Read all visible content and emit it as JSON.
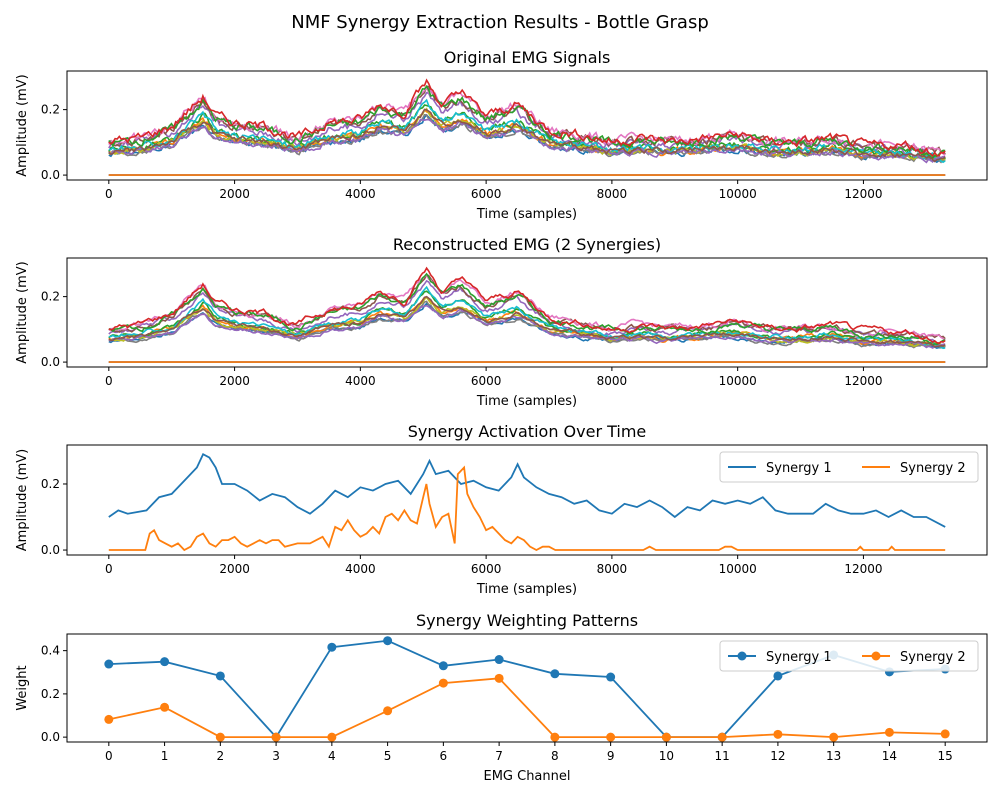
{
  "figure_title": "NMF Synergy Extraction Results - Bottle Grasp",
  "colors": {
    "synergy_1": "#1f77b4",
    "synergy_2": "#ff7f0e",
    "channel_palette": [
      "#1f77b4",
      "#ff7f0e",
      "#2ca02c",
      "#d62728",
      "#9467bd",
      "#8c564b",
      "#e377c2",
      "#7f7f7f",
      "#bcbd22",
      "#17becf"
    ]
  },
  "chart_data": [
    {
      "id": "original",
      "type": "line",
      "title": "Original EMG Signals",
      "xlabel": "Time (samples)",
      "ylabel": "Amplitude (mV)",
      "xlim": [
        0,
        13300
      ],
      "ylim": [
        0,
        0.3
      ],
      "xticks": [
        0,
        2000,
        4000,
        6000,
        8000,
        10000,
        12000
      ],
      "yticks": [
        0.0,
        0.2
      ],
      "ytick_labels": [
        "0.0",
        "0.2"
      ],
      "legend": false,
      "channels": 16,
      "note_channels_at_zero": [
        3,
        10,
        11
      ],
      "envelope": [
        [
          0,
          0.09
        ],
        [
          500,
          0.1
        ],
        [
          1000,
          0.13
        ],
        [
          1500,
          0.21
        ],
        [
          1700,
          0.16
        ],
        [
          2000,
          0.14
        ],
        [
          2500,
          0.13
        ],
        [
          3000,
          0.1
        ],
        [
          3500,
          0.14
        ],
        [
          4000,
          0.15
        ],
        [
          4300,
          0.19
        ],
        [
          4700,
          0.17
        ],
        [
          5050,
          0.25
        ],
        [
          5300,
          0.19
        ],
        [
          5600,
          0.22
        ],
        [
          6000,
          0.16
        ],
        [
          6500,
          0.19
        ],
        [
          7000,
          0.12
        ],
        [
          7500,
          0.11
        ],
        [
          8000,
          0.09
        ],
        [
          8500,
          0.1
        ],
        [
          9000,
          0.09
        ],
        [
          9500,
          0.1
        ],
        [
          10000,
          0.11
        ],
        [
          10500,
          0.09
        ],
        [
          11000,
          0.09
        ],
        [
          11500,
          0.1
        ],
        [
          12000,
          0.08
        ],
        [
          12500,
          0.08
        ],
        [
          13300,
          0.06
        ]
      ]
    },
    {
      "id": "reconstructed",
      "type": "line",
      "title": "Reconstructed EMG (2 Synergies)",
      "xlabel": "Time (samples)",
      "ylabel": "Amplitude (mV)",
      "xlim": [
        0,
        13300
      ],
      "ylim": [
        0,
        0.3
      ],
      "xticks": [
        0,
        2000,
        4000,
        6000,
        8000,
        10000,
        12000
      ],
      "yticks": [
        0.0,
        0.2
      ],
      "ytick_labels": [
        "0.0",
        "0.2"
      ],
      "legend": false,
      "channels": 16,
      "note_channels_at_zero": [
        3,
        10,
        11
      ]
    },
    {
      "id": "activation",
      "type": "line",
      "title": "Synergy Activation Over Time",
      "xlabel": "Time (samples)",
      "ylabel": "Amplitude (mV)",
      "xlim": [
        0,
        13300
      ],
      "ylim": [
        0,
        0.3
      ],
      "xticks": [
        0,
        2000,
        4000,
        6000,
        8000,
        10000,
        12000
      ],
      "yticks": [
        0.0,
        0.2
      ],
      "ytick_labels": [
        "0.0",
        "0.2"
      ],
      "legend": "upper right",
      "series": [
        {
          "name": "Synergy 1",
          "x": [
            0,
            150,
            300,
            600,
            800,
            1000,
            1200,
            1400,
            1500,
            1600,
            1700,
            1800,
            2000,
            2200,
            2400,
            2600,
            2800,
            3000,
            3200,
            3400,
            3600,
            3800,
            4000,
            4200,
            4400,
            4600,
            4800,
            5000,
            5100,
            5200,
            5400,
            5600,
            5800,
            6000,
            6200,
            6400,
            6500,
            6600,
            6800,
            7000,
            7200,
            7400,
            7600,
            7800,
            8000,
            8200,
            8400,
            8600,
            8800,
            9000,
            9200,
            9400,
            9600,
            9800,
            10000,
            10200,
            10400,
            10600,
            10800,
            11000,
            11200,
            11400,
            11600,
            11800,
            12000,
            12200,
            12400,
            12600,
            12800,
            13000,
            13300
          ],
          "values": [
            0.1,
            0.12,
            0.11,
            0.12,
            0.16,
            0.17,
            0.21,
            0.25,
            0.29,
            0.28,
            0.25,
            0.2,
            0.2,
            0.18,
            0.15,
            0.17,
            0.16,
            0.13,
            0.11,
            0.14,
            0.18,
            0.16,
            0.19,
            0.18,
            0.2,
            0.21,
            0.17,
            0.23,
            0.27,
            0.23,
            0.24,
            0.2,
            0.21,
            0.19,
            0.18,
            0.22,
            0.26,
            0.22,
            0.19,
            0.17,
            0.16,
            0.14,
            0.15,
            0.12,
            0.11,
            0.14,
            0.13,
            0.15,
            0.13,
            0.1,
            0.13,
            0.12,
            0.15,
            0.14,
            0.15,
            0.14,
            0.16,
            0.12,
            0.11,
            0.11,
            0.11,
            0.14,
            0.12,
            0.11,
            0.11,
            0.12,
            0.1,
            0.12,
            0.1,
            0.1,
            0.07
          ]
        },
        {
          "name": "Synergy 2",
          "x": [
            0,
            500,
            580,
            650,
            720,
            800,
            900,
            1000,
            1100,
            1200,
            1300,
            1400,
            1500,
            1600,
            1700,
            1800,
            1900,
            2000,
            2100,
            2200,
            2300,
            2400,
            2500,
            2600,
            2700,
            2800,
            3000,
            3200,
            3400,
            3500,
            3600,
            3700,
            3800,
            3900,
            4000,
            4100,
            4200,
            4300,
            4400,
            4500,
            4600,
            4700,
            4800,
            4900,
            5000,
            5050,
            5100,
            5200,
            5300,
            5400,
            5500,
            5550,
            5600,
            5650,
            5700,
            5800,
            5900,
            6000,
            6100,
            6200,
            6300,
            6400,
            6500,
            6600,
            6700,
            6800,
            6900,
            7000,
            7100,
            8500,
            8600,
            8700,
            9700,
            9800,
            9900,
            10000,
            10100,
            11900,
            11950,
            12000,
            12400,
            12450,
            12500,
            13300
          ],
          "values": [
            0.0,
            0.0,
            0.0,
            0.05,
            0.06,
            0.03,
            0.02,
            0.01,
            0.02,
            0.0,
            0.01,
            0.04,
            0.05,
            0.02,
            0.01,
            0.03,
            0.03,
            0.04,
            0.02,
            0.01,
            0.02,
            0.03,
            0.02,
            0.03,
            0.03,
            0.01,
            0.02,
            0.02,
            0.04,
            0.01,
            0.07,
            0.06,
            0.09,
            0.06,
            0.04,
            0.05,
            0.07,
            0.05,
            0.1,
            0.11,
            0.09,
            0.12,
            0.09,
            0.08,
            0.16,
            0.2,
            0.14,
            0.07,
            0.1,
            0.11,
            0.02,
            0.23,
            0.24,
            0.25,
            0.17,
            0.13,
            0.1,
            0.06,
            0.07,
            0.05,
            0.03,
            0.02,
            0.04,
            0.03,
            0.01,
            0.0,
            0.01,
            0.01,
            0.0,
            0.0,
            0.01,
            0.0,
            0.0,
            0.01,
            0.01,
            0.0,
            0.0,
            0.0,
            0.01,
            0.0,
            0.0,
            0.01,
            0.0,
            0.0
          ]
        }
      ]
    },
    {
      "id": "weights",
      "type": "line",
      "title": "Synergy Weighting Patterns",
      "xlabel": "EMG Channel",
      "ylabel": "Weight",
      "xlim": [
        -0.75,
        15.75
      ],
      "ylim": [
        0,
        0.45
      ],
      "xticks": [
        0,
        1,
        2,
        3,
        4,
        5,
        6,
        7,
        8,
        9,
        10,
        11,
        12,
        13,
        14,
        15
      ],
      "yticks": [
        0.0,
        0.2,
        0.4
      ],
      "ytick_labels": [
        "0.0",
        "0.2",
        "0.4"
      ],
      "legend": "upper right",
      "markers": true,
      "categories": [
        0,
        1,
        2,
        3,
        4,
        5,
        6,
        7,
        8,
        9,
        10,
        11,
        12,
        13,
        14,
        15
      ],
      "series": [
        {
          "name": "Synergy 1",
          "values": [
            0.338,
            0.349,
            0.283,
            0.0,
            0.416,
            0.446,
            0.33,
            0.359,
            0.293,
            0.278,
            0.0,
            0.0,
            0.283,
            0.38,
            0.302,
            0.315
          ]
        },
        {
          "name": "Synergy 2",
          "values": [
            0.082,
            0.138,
            0.0,
            0.0,
            0.0,
            0.122,
            0.25,
            0.272,
            0.0,
            0.0,
            0.0,
            0.0,
            0.013,
            0.0,
            0.022,
            0.015
          ]
        }
      ]
    }
  ]
}
